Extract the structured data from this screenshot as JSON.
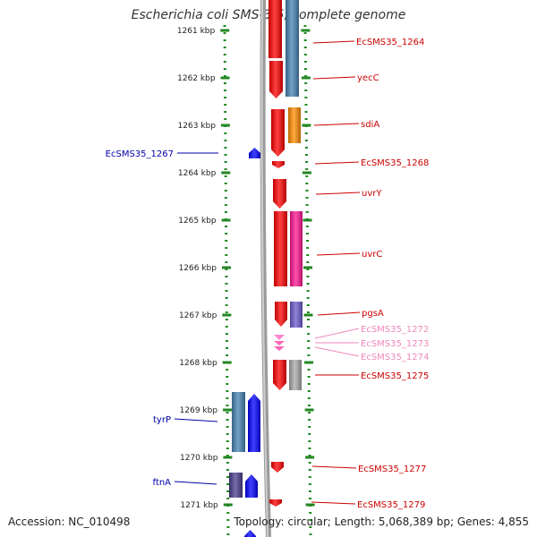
{
  "title": "Escherichia coli SMS-3-5, complete genome",
  "accession": "Accession: NC_010498",
  "summary": "Topology: circular; Length: 5,068,389 bp; Genes: 4,855",
  "ruler": [
    {
      "label": "1261 kbp"
    },
    {
      "label": "1262 kbp"
    },
    {
      "label": "1263 kbp"
    },
    {
      "label": "1264 kbp"
    },
    {
      "label": "1265 kbp"
    },
    {
      "label": "1266 kbp"
    },
    {
      "label": "1267 kbp"
    },
    {
      "label": "1268 kbp"
    },
    {
      "label": "1269 kbp"
    },
    {
      "label": "1270 kbp"
    },
    {
      "label": "1271 kbp"
    }
  ],
  "colors": {
    "forward_label": "#cc0000",
    "reverse_label": "#0000aa",
    "faint_label": "#ee88bb",
    "backbone": "#808080",
    "ruler": "#228822"
  },
  "genes": [
    {
      "name": "EcSMS35_1264",
      "strand": "forward",
      "color": "#ff0000"
    },
    {
      "name": "yecC",
      "strand": "forward",
      "color": "#4682b4"
    },
    {
      "name": "sdiA",
      "strand": "forward",
      "color": "#ff8c00"
    },
    {
      "name": "EcSMS35_1268",
      "strand": "forward",
      "color": "#ff0000"
    },
    {
      "name": "uvrY",
      "strand": "forward",
      "color": "#ff0000"
    },
    {
      "name": "uvrC",
      "strand": "forward",
      "color": "#ff1493"
    },
    {
      "name": "pgsA",
      "strand": "forward",
      "color": "#6a5acd"
    },
    {
      "name": "EcSMS35_1272",
      "strand": "forward",
      "color": "#ff88cc"
    },
    {
      "name": "EcSMS35_1273",
      "strand": "forward",
      "color": "#ff88cc"
    },
    {
      "name": "EcSMS35_1274",
      "strand": "forward",
      "color": "#ff88cc"
    },
    {
      "name": "EcSMS35_1275",
      "strand": "forward",
      "color": "#a9a9a9"
    },
    {
      "name": "EcSMS35_1277",
      "strand": "forward",
      "color": "#ff0000"
    },
    {
      "name": "EcSMS35_1279",
      "strand": "forward",
      "color": "#ff0000"
    },
    {
      "name": "EcSMS35_1267",
      "strand": "reverse",
      "color": "#0000ff"
    },
    {
      "name": "tyrP",
      "strand": "reverse",
      "color": "#4682b4"
    },
    {
      "name": "ftnA",
      "strand": "reverse",
      "color": "#483d8b"
    }
  ]
}
